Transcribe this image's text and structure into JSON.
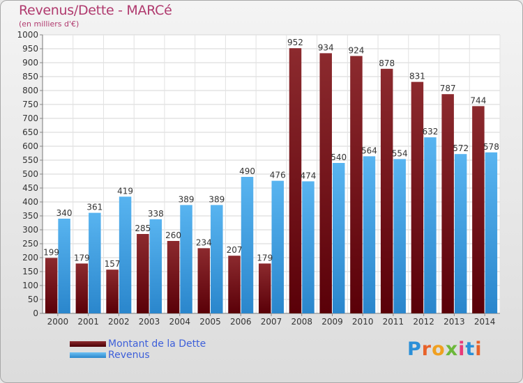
{
  "header": {
    "title": "Revenus/Dette - MARCé",
    "subtitle": "(en milliers d'€)"
  },
  "legend": {
    "items": [
      {
        "label": "Montant de la Dette",
        "color": "#6b0a0e"
      },
      {
        "label": "Revenus",
        "color": "#3e9fe6"
      }
    ]
  },
  "logo": {
    "text": "Proxiti",
    "letters": [
      "P",
      "r",
      "o",
      "x",
      "i",
      "t",
      "i"
    ],
    "letter_colors": [
      "#2a8fd8",
      "#e8622a",
      "#f0a020",
      "#6cb83a",
      "#e83a7a",
      "#2a8fd8",
      "#e8622a"
    ]
  },
  "chart_data": {
    "type": "bar",
    "categories": [
      "2000",
      "2001",
      "2002",
      "2003",
      "2004",
      "2005",
      "2006",
      "2007",
      "2008",
      "2009",
      "2010",
      "2011",
      "2012",
      "2013",
      "2014"
    ],
    "series": [
      {
        "name": "Montant de la Dette",
        "values": [
          199,
          179,
          157,
          285,
          260,
          234,
          207,
          179,
          952,
          934,
          924,
          878,
          831,
          787,
          744
        ],
        "color": "#7a1a1e"
      },
      {
        "name": "Revenus",
        "values": [
          340,
          361,
          419,
          338,
          389,
          389,
          490,
          476,
          474,
          540,
          564,
          554,
          632,
          572,
          578
        ],
        "color": "#4aa6e8"
      }
    ],
    "yticks": [
      0,
      50,
      100,
      150,
      200,
      250,
      300,
      350,
      400,
      450,
      500,
      550,
      600,
      650,
      700,
      750,
      800,
      850,
      900,
      950,
      1000
    ],
    "ylim": [
      0,
      1000
    ],
    "grid": true
  }
}
